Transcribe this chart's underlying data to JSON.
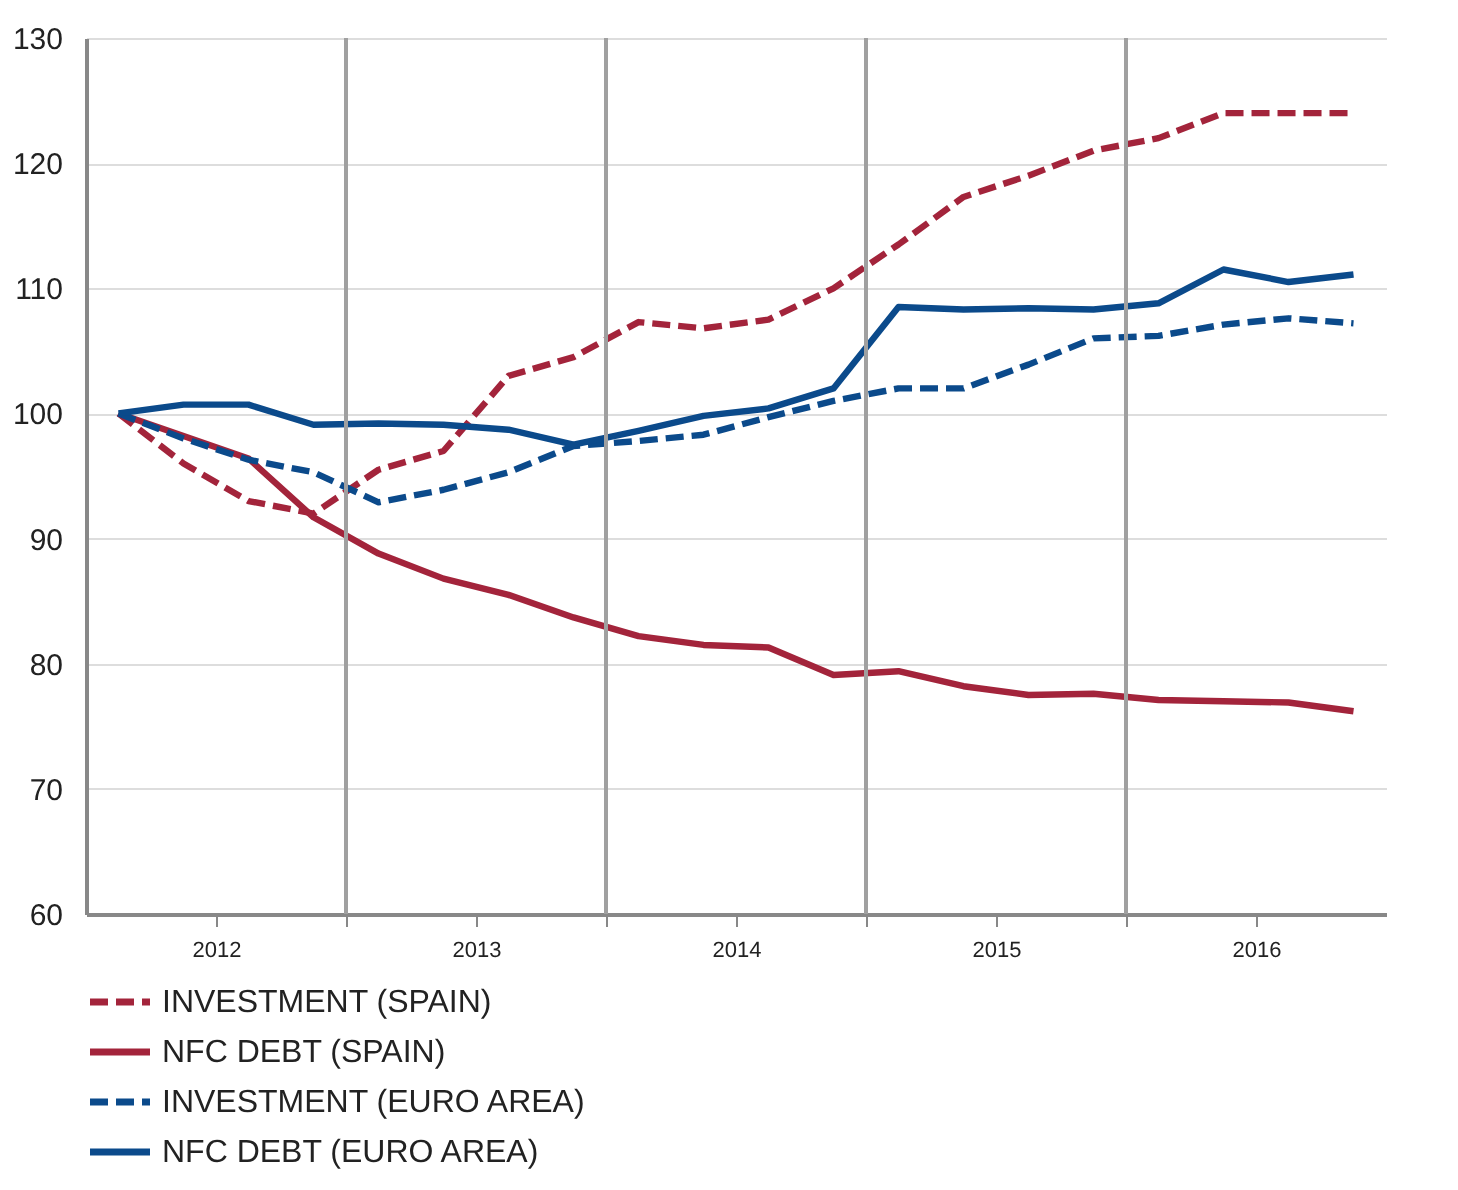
{
  "chart_data": {
    "type": "line",
    "x": [
      2012.125,
      2012.375,
      2012.625,
      2012.875,
      2013.125,
      2013.375,
      2013.625,
      2013.875,
      2014.125,
      2014.375,
      2014.625,
      2014.875,
      2015.125,
      2015.375,
      2015.625,
      2015.875,
      2016.125,
      2016.375,
      2016.625,
      2016.875
    ],
    "series": [
      {
        "name": "INVESTMENT (SPAIN)",
        "color": "#a3243b",
        "line_style": "dashed",
        "values": [
          100,
          96,
          93,
          92,
          95.5,
          97,
          103,
          104.5,
          107.3,
          106.8,
          107.5,
          110,
          113.5,
          117.3,
          119,
          121,
          122,
          124,
          124,
          124
        ]
      },
      {
        "name": "NFC DEBT (SPAIN)",
        "color": "#a3243b",
        "line_style": "solid",
        "values": [
          100,
          98.2,
          96.4,
          91.7,
          88.8,
          86.8,
          85.5,
          83.7,
          82.2,
          81.5,
          81.3,
          79.1,
          79.4,
          78.2,
          77.5,
          77.6,
          77.1,
          77,
          76.9,
          76.2
        ]
      },
      {
        "name": "INVESTMENT (EURO AREA)",
        "color": "#0b4a8b",
        "line_style": "dashed",
        "values": [
          100,
          98,
          96.3,
          95.3,
          92.9,
          93.9,
          95.3,
          97.4,
          97.8,
          98.3,
          99.7,
          101,
          102,
          102,
          103.9,
          106,
          106.2,
          107.1,
          107.6,
          107.2
        ]
      },
      {
        "name": "NFC DEBT (EURO AREA)",
        "color": "#0b4a8b",
        "line_style": "solid",
        "values": [
          100,
          100.7,
          100.7,
          99.1,
          99.2,
          99.1,
          98.7,
          97.5,
          98.6,
          99.8,
          100.4,
          102,
          108.5,
          108.3,
          108.4,
          108.3,
          108.8,
          111.5,
          110.5,
          111.1
        ]
      }
    ],
    "xlim": [
      2012,
      2017
    ],
    "xticks": [
      {
        "value": 2012.5,
        "label": "2012"
      },
      {
        "value": 2013,
        "label": null
      },
      {
        "value": 2013.5,
        "label": "2013"
      },
      {
        "value": 2014,
        "label": null
      },
      {
        "value": 2014.5,
        "label": "2014"
      },
      {
        "value": 2015,
        "label": null
      },
      {
        "value": 2015.5,
        "label": "2015"
      },
      {
        "value": 2016,
        "label": null
      },
      {
        "value": 2016.5,
        "label": "2016"
      }
    ],
    "ylim": [
      60,
      130
    ],
    "yticks": [
      60,
      70,
      80,
      90,
      100,
      110,
      120,
      130
    ],
    "ref_lines": [
      {
        "axis": "x",
        "value": 2013,
        "color": "#a0a0a0"
      },
      {
        "axis": "x",
        "value": 2014,
        "color": "#a0a0a0"
      },
      {
        "axis": "x",
        "value": 2015,
        "color": "#a0a0a0"
      },
      {
        "axis": "x",
        "value": 2016,
        "color": "#a0a0a0"
      }
    ],
    "grid": "y",
    "legend": "bottom",
    "marker": "none"
  }
}
